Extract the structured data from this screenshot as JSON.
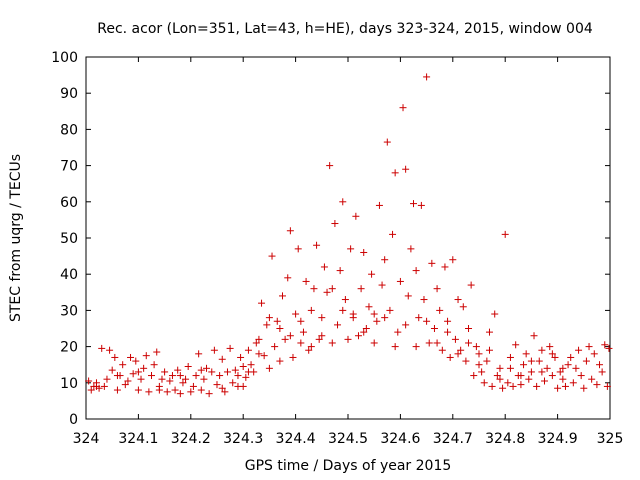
{
  "chart_data": {
    "type": "scatter",
    "title": "Rec. acor (Lon=351, Lat=43, h=HE), days 323-324, 2015, window 004",
    "xlabel": "GPS time / Days of year 2015",
    "ylabel": "STEC from uqrg / TECUs",
    "xlim": [
      324,
      325
    ],
    "ylim": [
      0,
      100
    ],
    "x_ticks": [
      "324",
      "324.1",
      "324.2",
      "324.3",
      "324.4",
      "324.5",
      "324.6",
      "324.7",
      "324.8",
      "324.9",
      "325"
    ],
    "y_ticks": [
      "0",
      "10",
      "20",
      "30",
      "40",
      "50",
      "60",
      "70",
      "80",
      "90",
      "100"
    ],
    "grid": false,
    "marker": "+",
    "color": "#cc0000",
    "series": [
      {
        "name": "STEC",
        "points": [
          [
            324.005,
            10.5
          ],
          [
            324.01,
            8
          ],
          [
            324.015,
            9
          ],
          [
            324.02,
            10
          ],
          [
            324.025,
            8.5
          ],
          [
            324.03,
            19.5
          ],
          [
            324.035,
            9
          ],
          [
            324.04,
            11
          ],
          [
            324.045,
            19
          ],
          [
            324.05,
            13.5
          ],
          [
            324.055,
            17
          ],
          [
            324.06,
            8
          ],
          [
            324.065,
            12
          ],
          [
            324.07,
            15
          ],
          [
            324.075,
            9.5
          ],
          [
            324.08,
            10.5
          ],
          [
            324.085,
            17
          ],
          [
            324.09,
            12.5
          ],
          [
            324.095,
            16
          ],
          [
            324.1,
            8
          ],
          [
            324.105,
            11
          ],
          [
            324.11,
            14
          ],
          [
            324.115,
            17.5
          ],
          [
            324.12,
            7.5
          ],
          [
            324.125,
            12
          ],
          [
            324.13,
            15
          ],
          [
            324.135,
            18.5
          ],
          [
            324.14,
            9
          ],
          [
            324.145,
            11
          ],
          [
            324.15,
            13
          ],
          [
            324.155,
            7.5
          ],
          [
            324.16,
            10.5
          ],
          [
            324.165,
            12
          ],
          [
            324.17,
            8
          ],
          [
            324.175,
            13.5
          ],
          [
            324.18,
            7
          ],
          [
            324.185,
            10
          ],
          [
            324.19,
            11
          ],
          [
            324.195,
            14.5
          ],
          [
            324.2,
            7.5
          ],
          [
            324.205,
            9
          ],
          [
            324.21,
            12
          ],
          [
            324.215,
            18
          ],
          [
            324.22,
            8
          ],
          [
            324.225,
            11
          ],
          [
            324.23,
            14
          ],
          [
            324.235,
            7
          ],
          [
            324.24,
            13
          ],
          [
            324.245,
            19
          ],
          [
            324.25,
            9.5
          ],
          [
            324.255,
            12
          ],
          [
            324.26,
            16.5
          ],
          [
            324.265,
            7.5
          ],
          [
            324.27,
            13
          ],
          [
            324.275,
            19.5
          ],
          [
            324.28,
            10
          ],
          [
            324.285,
            13.5
          ],
          [
            324.29,
            9
          ],
          [
            324.295,
            17
          ],
          [
            324.3,
            14.5
          ],
          [
            324.305,
            11.5
          ],
          [
            324.31,
            19
          ],
          [
            324.315,
            15
          ],
          [
            324.32,
            13
          ],
          [
            324.325,
            21
          ],
          [
            324.33,
            18
          ],
          [
            324.335,
            32
          ],
          [
            324.34,
            17.5
          ],
          [
            324.345,
            26
          ],
          [
            324.35,
            14
          ],
          [
            324.355,
            45
          ],
          [
            324.36,
            20
          ],
          [
            324.365,
            27
          ],
          [
            324.37,
            16
          ],
          [
            324.375,
            34
          ],
          [
            324.38,
            22
          ],
          [
            324.385,
            39
          ],
          [
            324.39,
            52
          ],
          [
            324.395,
            17
          ],
          [
            324.4,
            29
          ],
          [
            324.405,
            47
          ],
          [
            324.41,
            21
          ],
          [
            324.415,
            24
          ],
          [
            324.42,
            38
          ],
          [
            324.425,
            19
          ],
          [
            324.43,
            30
          ],
          [
            324.435,
            36
          ],
          [
            324.44,
            48
          ],
          [
            324.445,
            22
          ],
          [
            324.45,
            28
          ],
          [
            324.455,
            42
          ],
          [
            324.46,
            35
          ],
          [
            324.465,
            70
          ],
          [
            324.47,
            21
          ],
          [
            324.475,
            54
          ],
          [
            324.48,
            26
          ],
          [
            324.485,
            41
          ],
          [
            324.49,
            60
          ],
          [
            324.495,
            33
          ],
          [
            324.5,
            22
          ],
          [
            324.505,
            47
          ],
          [
            324.51,
            29
          ],
          [
            324.515,
            56
          ],
          [
            324.52,
            23
          ],
          [
            324.525,
            36
          ],
          [
            324.53,
            46
          ],
          [
            324.535,
            25
          ],
          [
            324.54,
            31
          ],
          [
            324.545,
            40
          ],
          [
            324.55,
            21
          ],
          [
            324.555,
            27
          ],
          [
            324.56,
            59
          ],
          [
            324.565,
            37
          ],
          [
            324.57,
            44
          ],
          [
            324.575,
            76.5
          ],
          [
            324.58,
            30
          ],
          [
            324.585,
            51
          ],
          [
            324.59,
            68
          ],
          [
            324.595,
            24
          ],
          [
            324.6,
            38
          ],
          [
            324.605,
            86
          ],
          [
            324.61,
            69
          ],
          [
            324.615,
            34
          ],
          [
            324.62,
            47
          ],
          [
            324.625,
            59.5
          ],
          [
            324.63,
            41
          ],
          [
            324.635,
            28
          ],
          [
            324.64,
            59
          ],
          [
            324.645,
            33
          ],
          [
            324.65,
            94.5
          ],
          [
            324.655,
            21
          ],
          [
            324.66,
            43
          ],
          [
            324.665,
            25
          ],
          [
            324.67,
            36
          ],
          [
            324.675,
            30
          ],
          [
            324.68,
            19
          ],
          [
            324.685,
            42
          ],
          [
            324.69,
            27
          ],
          [
            324.695,
            17
          ],
          [
            324.7,
            44
          ],
          [
            324.705,
            22
          ],
          [
            324.71,
            33
          ],
          [
            324.715,
            19
          ],
          [
            324.72,
            31
          ],
          [
            324.725,
            16
          ],
          [
            324.73,
            25
          ],
          [
            324.735,
            37
          ],
          [
            324.74,
            12
          ],
          [
            324.745,
            20
          ],
          [
            324.75,
            18
          ],
          [
            324.755,
            13
          ],
          [
            324.76,
            10
          ],
          [
            324.765,
            16
          ],
          [
            324.77,
            24
          ],
          [
            324.775,
            9
          ],
          [
            324.78,
            29
          ],
          [
            324.785,
            12
          ],
          [
            324.79,
            11
          ],
          [
            324.795,
            8.5
          ],
          [
            324.8,
            51
          ],
          [
            324.805,
            10
          ],
          [
            324.81,
            14
          ],
          [
            324.815,
            9
          ],
          [
            324.82,
            20.5
          ],
          [
            324.825,
            12
          ],
          [
            324.83,
            9.5
          ],
          [
            324.835,
            15
          ],
          [
            324.84,
            18
          ],
          [
            324.845,
            11
          ],
          [
            324.85,
            13
          ],
          [
            324.855,
            23
          ],
          [
            324.86,
            9
          ],
          [
            324.865,
            16
          ],
          [
            324.87,
            19
          ],
          [
            324.875,
            10.5
          ],
          [
            324.88,
            14
          ],
          [
            324.885,
            20
          ],
          [
            324.89,
            12
          ],
          [
            324.895,
            17
          ],
          [
            324.9,
            8.5
          ],
          [
            324.905,
            13
          ],
          [
            324.91,
            11
          ],
          [
            324.915,
            9
          ],
          [
            324.92,
            15
          ],
          [
            324.925,
            17
          ],
          [
            324.93,
            10
          ],
          [
            324.935,
            14
          ],
          [
            324.94,
            19
          ],
          [
            324.945,
            12
          ],
          [
            324.95,
            8.5
          ],
          [
            324.955,
            16
          ],
          [
            324.96,
            20
          ],
          [
            324.965,
            11
          ],
          [
            324.97,
            18
          ],
          [
            324.975,
            9.5
          ],
          [
            324.98,
            15
          ],
          [
            324.985,
            13
          ],
          [
            324.99,
            20.5
          ],
          [
            324.995,
            9
          ],
          [
            324.998,
            19.5
          ],
          [
            324.02,
            9
          ],
          [
            324.06,
            12
          ],
          [
            324.1,
            13
          ],
          [
            324.14,
            8
          ],
          [
            324.18,
            12
          ],
          [
            324.22,
            13.5
          ],
          [
            324.26,
            8.5
          ],
          [
            324.29,
            12
          ],
          [
            324.3,
            9
          ],
          [
            324.31,
            13
          ],
          [
            324.33,
            22
          ],
          [
            324.35,
            28
          ],
          [
            324.37,
            25
          ],
          [
            324.39,
            23
          ],
          [
            324.41,
            27
          ],
          [
            324.43,
            20
          ],
          [
            324.45,
            23
          ],
          [
            324.47,
            36
          ],
          [
            324.49,
            30
          ],
          [
            324.51,
            28
          ],
          [
            324.53,
            24
          ],
          [
            324.55,
            29
          ],
          [
            324.57,
            28
          ],
          [
            324.59,
            20
          ],
          [
            324.61,
            26
          ],
          [
            324.63,
            20
          ],
          [
            324.65,
            27
          ],
          [
            324.67,
            21
          ],
          [
            324.69,
            24
          ],
          [
            324.71,
            18
          ],
          [
            324.73,
            21
          ],
          [
            324.75,
            15
          ],
          [
            324.77,
            19
          ],
          [
            324.79,
            14
          ],
          [
            324.81,
            17
          ],
          [
            324.83,
            12
          ],
          [
            324.85,
            16
          ],
          [
            324.87,
            13
          ],
          [
            324.89,
            18
          ],
          [
            324.91,
            14
          ]
        ]
      }
    ]
  }
}
